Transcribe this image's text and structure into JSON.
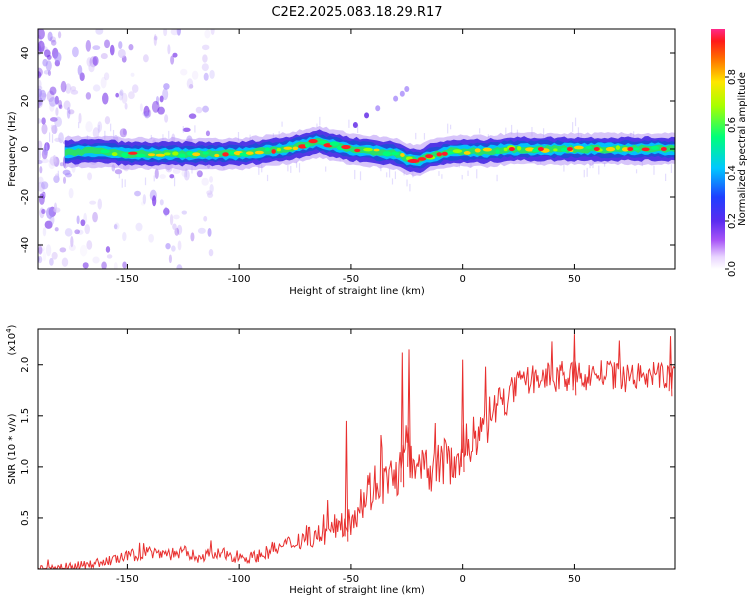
{
  "title": "C2E2.2025.083.18.29.R17",
  "chart_data": [
    {
      "type": "heatmap",
      "xlabel": "Height of straight line (km)",
      "ylabel": "Frequency (Hz)",
      "xlim": [
        -190,
        95
      ],
      "ylim": [
        -50,
        50
      ],
      "x_ticks": [
        "-150",
        "-100",
        "-50",
        "0",
        "50"
      ],
      "x_tick_values": [
        -150,
        -100,
        -50,
        0,
        50
      ],
      "y_ticks": [
        "-40",
        "-20",
        "0",
        "20",
        "40"
      ],
      "y_tick_values": [
        -40,
        -20,
        0,
        20,
        40
      ],
      "colorbar": {
        "label": "Normalized spectral amplitude",
        "range": [
          0,
          1
        ],
        "ticks": [
          "0.0",
          "0.2",
          "0.4",
          "0.6",
          "0.8"
        ],
        "tick_values": [
          0.0,
          0.2,
          0.4,
          0.6,
          0.8
        ],
        "colormap": "rainbow (white→violet→blue→cyan→green→yellow→red→magenta)"
      },
      "ridge_center_frequency": {
        "x": [
          -185,
          -170,
          -160,
          -150,
          -140,
          -130,
          -120,
          -110,
          -100,
          -90,
          -80,
          -70,
          -65,
          -60,
          -50,
          -40,
          -30,
          -25,
          -20,
          -15,
          -10,
          -5,
          0,
          5,
          10,
          20,
          30,
          40,
          50,
          60,
          70,
          80,
          95
        ],
        "y": [
          -2,
          -1,
          -1,
          -2,
          -2,
          -2,
          -2,
          -2,
          -2,
          -1,
          0,
          2,
          3,
          2,
          0,
          -1,
          -2,
          -4,
          -5,
          -3,
          -2,
          -1,
          -1,
          -1,
          -1,
          0,
          0,
          0,
          0,
          0,
          0,
          0,
          0
        ]
      }
    },
    {
      "type": "line",
      "xlabel": "Height of straight line (km)",
      "ylabel": "SNR (10 * v/v)",
      "y_scale_label": "(x10^4)",
      "y_scale_label_base": "(x10",
      "y_scale_label_exp": "4",
      "y_scale_label_close": ")",
      "xlim": [
        -190,
        95
      ],
      "ylim": [
        0,
        2.35
      ],
      "x_ticks": [
        "-150",
        "-100",
        "-50",
        "0",
        "50"
      ],
      "x_tick_values": [
        -150,
        -100,
        -50,
        0,
        50
      ],
      "y_ticks": [
        "0.5",
        "1.0",
        "1.5",
        "2.0"
      ],
      "y_tick_values": [
        0.5,
        1.0,
        1.5,
        2.0
      ],
      "series": [
        {
          "color": "#e8302f",
          "x": [
            -190,
            -180,
            -170,
            -160,
            -150,
            -145,
            -140,
            -135,
            -130,
            -125,
            -120,
            -115,
            -110,
            -105,
            -100,
            -95,
            -90,
            -85,
            -80,
            -75,
            -70,
            -65,
            -60,
            -55,
            -50,
            -45,
            -40,
            -35,
            -30,
            -27,
            -25,
            -22,
            -20,
            -15,
            -10,
            -5,
            0,
            5,
            10,
            15,
            20,
            25,
            30,
            35,
            40,
            45,
            50,
            55,
            60,
            65,
            70,
            75,
            80,
            85,
            90,
            95
          ],
          "y": [
            0.0,
            0.02,
            0.04,
            0.07,
            0.12,
            0.15,
            0.17,
            0.16,
            0.15,
            0.16,
            0.13,
            0.14,
            0.14,
            0.14,
            0.13,
            0.11,
            0.14,
            0.19,
            0.22,
            0.27,
            0.32,
            0.33,
            0.35,
            0.45,
            0.48,
            0.68,
            0.82,
            0.85,
            0.9,
            1.0,
            1.25,
            0.95,
            0.95,
            0.95,
            1.05,
            1.05,
            1.15,
            1.3,
            1.4,
            1.6,
            1.7,
            1.8,
            1.85,
            1.88,
            1.88,
            1.9,
            1.9,
            1.88,
            1.92,
            1.9,
            1.88,
            1.9,
            1.88,
            1.9,
            1.88,
            1.9
          ],
          "spikes": [
            {
              "x": -52,
              "y": 1.45
            },
            {
              "x": -27,
              "y": 2.12
            },
            {
              "x": -24,
              "y": 2.15
            },
            {
              "x": 0,
              "y": 2.05
            },
            {
              "x": 50,
              "y": 2.3
            },
            {
              "x": 93,
              "y": 2.28
            }
          ]
        }
      ]
    }
  ]
}
